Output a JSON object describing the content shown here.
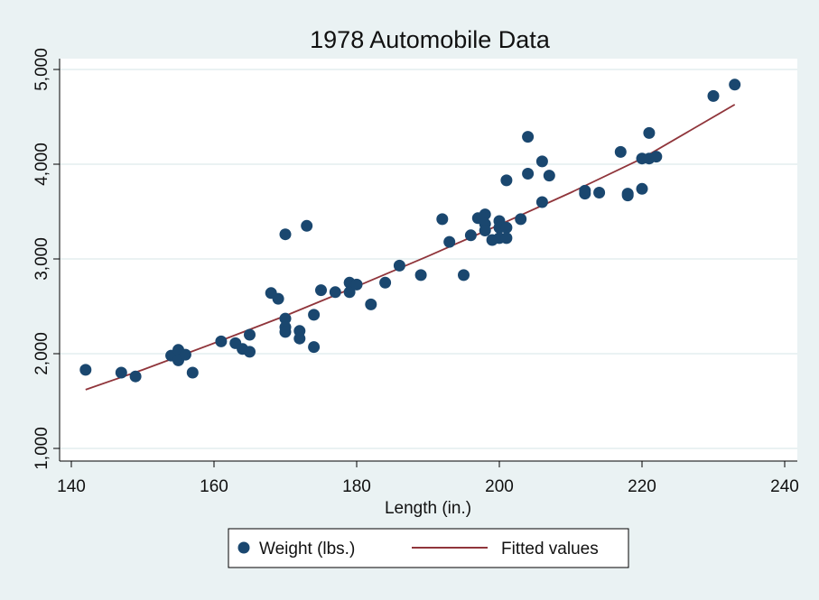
{
  "chart_data": {
    "type": "scatter",
    "title": "1978 Automobile Data",
    "xlabel": "Length (in.)",
    "ylabel": "",
    "xlim": [
      140,
      240
    ],
    "ylim": [
      1000,
      5000
    ],
    "xticks": [
      140,
      160,
      180,
      200,
      220,
      240
    ],
    "yticks": [
      1000,
      2000,
      3000,
      4000,
      5000
    ],
    "xtick_labels": [
      "140",
      "160",
      "180",
      "200",
      "220",
      "240"
    ],
    "ytick_labels": [
      "1,000",
      "2,000",
      "3,000",
      "4,000",
      "5,000"
    ],
    "grid": "horizontal",
    "legend_position": "bottom",
    "series": [
      {
        "name": "Weight (lbs.)",
        "type": "scatter",
        "color": "#1a476f",
        "points": [
          [
            142,
            1830
          ],
          [
            147,
            1800
          ],
          [
            149,
            1760
          ],
          [
            154,
            1980
          ],
          [
            155,
            2040
          ],
          [
            155,
            1930
          ],
          [
            156,
            1990
          ],
          [
            157,
            1800
          ],
          [
            161,
            2130
          ],
          [
            163,
            2110
          ],
          [
            164,
            2050
          ],
          [
            165,
            2200
          ],
          [
            165,
            2020
          ],
          [
            168,
            2640
          ],
          [
            169,
            2580
          ],
          [
            170,
            3260
          ],
          [
            170,
            2370
          ],
          [
            170,
            2280
          ],
          [
            170,
            2230
          ],
          [
            172,
            2240
          ],
          [
            172,
            2160
          ],
          [
            173,
            3350
          ],
          [
            174,
            2410
          ],
          [
            174,
            2070
          ],
          [
            175,
            2670
          ],
          [
            177,
            2650
          ],
          [
            179,
            2750
          ],
          [
            179,
            2650
          ],
          [
            180,
            2730
          ],
          [
            182,
            2520
          ],
          [
            184,
            2750
          ],
          [
            186,
            2930
          ],
          [
            189,
            2830
          ],
          [
            192,
            3420
          ],
          [
            193,
            3180
          ],
          [
            195,
            2830
          ],
          [
            196,
            3250
          ],
          [
            197,
            3430
          ],
          [
            198,
            3470
          ],
          [
            198,
            3370
          ],
          [
            198,
            3300
          ],
          [
            199,
            3200
          ],
          [
            200,
            3400
          ],
          [
            200,
            3330
          ],
          [
            200,
            3220
          ],
          [
            201,
            3830
          ],
          [
            201,
            3330
          ],
          [
            201,
            3220
          ],
          [
            203,
            3420
          ],
          [
            204,
            4290
          ],
          [
            204,
            3900
          ],
          [
            206,
            4030
          ],
          [
            206,
            3600
          ],
          [
            207,
            3880
          ],
          [
            212,
            3720
          ],
          [
            212,
            3690
          ],
          [
            214,
            3700
          ],
          [
            217,
            4130
          ],
          [
            218,
            3690
          ],
          [
            218,
            3670
          ],
          [
            220,
            4060
          ],
          [
            220,
            3740
          ],
          [
            221,
            4330
          ],
          [
            221,
            4060
          ],
          [
            222,
            4080
          ],
          [
            230,
            4720
          ],
          [
            233,
            4840
          ]
        ]
      },
      {
        "name": "Fitted values",
        "type": "line",
        "color": "#90353b",
        "x": [
          142,
          150,
          160,
          170,
          180,
          190,
          200,
          210,
          220,
          233
        ],
        "y": [
          1620,
          1830,
          2110,
          2400,
          2710,
          3030,
          3360,
          3700,
          4060,
          4630
        ]
      }
    ]
  }
}
